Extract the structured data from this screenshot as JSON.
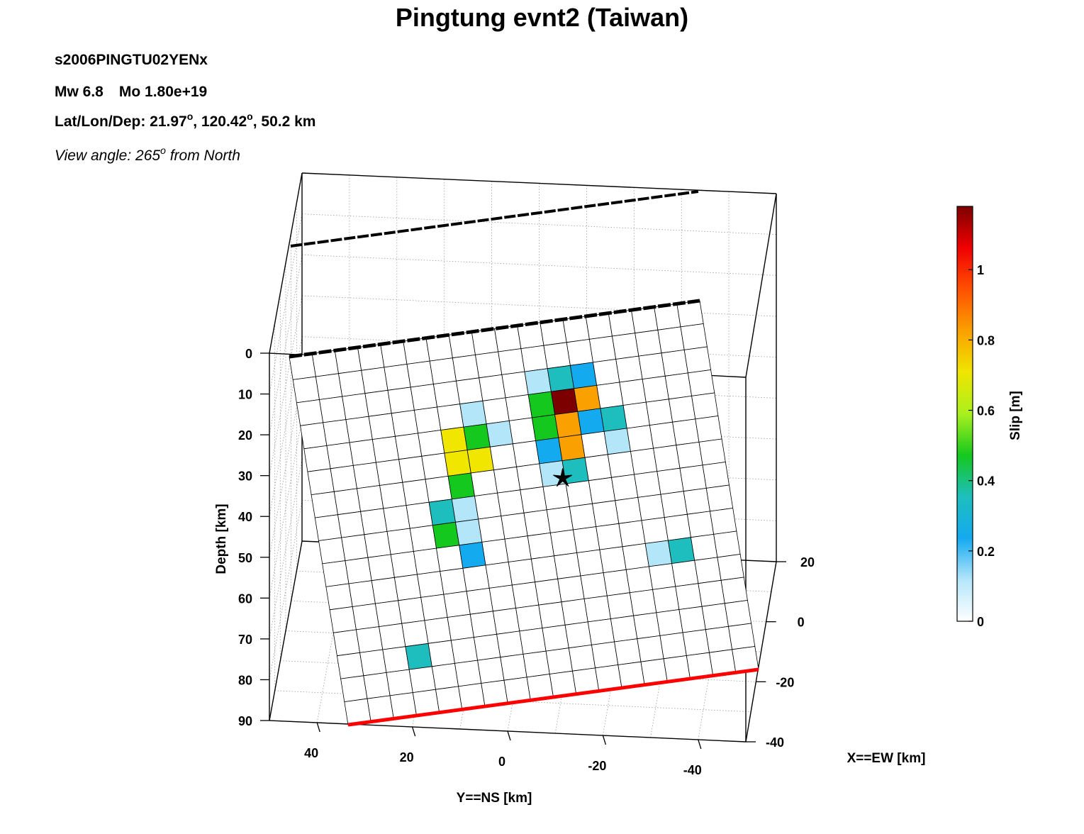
{
  "header": {
    "title": "Pingtung evnt2 (Taiwan)",
    "event_id": "s2006PINGTU02YENx",
    "mw_label": "Mw 6.8",
    "mo_label": "Mo 1.80e+19",
    "loc_prefix": "Lat/Lon/Dep: 21.97",
    "loc_lat_suffix": ", 120.42",
    "loc_lon_suffix": ", 50.2 km",
    "degree_symbol": "o",
    "view_prefix": "View angle: 265",
    "view_suffix": " from North"
  },
  "chart_data": {
    "type": "heatmap",
    "subtype": "3d-fault-slip-model",
    "view_angle_deg": 265,
    "xlabel": "X==EW [km]",
    "ylabel": "Y==NS [km]",
    "zlabel": "Depth [km]",
    "x_ticks": [
      20,
      0,
      -20,
      -40
    ],
    "y_ticks": [
      40,
      20,
      0,
      -20,
      -40
    ],
    "depth_ticks": [
      0,
      10,
      20,
      30,
      40,
      50,
      60,
      70,
      80,
      90
    ],
    "xlim": [
      -40,
      20
    ],
    "ylim": [
      -50,
      50
    ],
    "depth_lim": [
      0,
      90
    ],
    "grid": true,
    "colorbar": {
      "label": "Slip [m]",
      "min": 0,
      "max": 1.18,
      "ticks": [
        0,
        0.2,
        0.4,
        0.6,
        0.8,
        1
      ],
      "tick_labels": [
        "0",
        "0.2",
        "0.4",
        "0.6",
        "0.8",
        "1"
      ],
      "colormap": [
        "#ffffff",
        "#b4e6fa",
        "#14aaf0",
        "#1ebebe",
        "#14c81e",
        "#aaf01e",
        "#f0e600",
        "#faa000",
        "#ff5000",
        "#f00000",
        "#7d0000"
      ]
    },
    "fault_grid": {
      "columns": 18,
      "rows": 16
    },
    "hypocenter": {
      "column": 10.9,
      "row": 6.75
    },
    "cells": [
      {
        "col": 7,
        "row": 3,
        "slip": 0.17
      },
      {
        "col": 10,
        "row": 2,
        "slip": 0.17
      },
      {
        "col": 11,
        "row": 2,
        "slip": 0.4
      },
      {
        "col": 12,
        "row": 2,
        "slip": 0.28
      },
      {
        "col": 6,
        "row": 4,
        "slip": 0.7
      },
      {
        "col": 7,
        "row": 4,
        "slip": 0.42
      },
      {
        "col": 8,
        "row": 4,
        "slip": 0.17
      },
      {
        "col": 10,
        "row": 3,
        "slip": 0.52
      },
      {
        "col": 11,
        "row": 3,
        "slip": 1.18
      },
      {
        "col": 12,
        "row": 3,
        "slip": 0.8
      },
      {
        "col": 6,
        "row": 5,
        "slip": 0.7
      },
      {
        "col": 7,
        "row": 5,
        "slip": 0.66
      },
      {
        "col": 10,
        "row": 4,
        "slip": 0.42
      },
      {
        "col": 11,
        "row": 4,
        "slip": 0.8
      },
      {
        "col": 12,
        "row": 4,
        "slip": 0.24
      },
      {
        "col": 13,
        "row": 4,
        "slip": 0.38
      },
      {
        "col": 6,
        "row": 6,
        "slip": 0.45
      },
      {
        "col": 10,
        "row": 5,
        "slip": 0.24
      },
      {
        "col": 11,
        "row": 5,
        "slip": 0.8
      },
      {
        "col": 13,
        "row": 5,
        "slip": 0.12
      },
      {
        "col": 5,
        "row": 7,
        "slip": 0.36
      },
      {
        "col": 6,
        "row": 7,
        "slip": 0.16
      },
      {
        "col": 10,
        "row": 6,
        "slip": 0.17
      },
      {
        "col": 11,
        "row": 6,
        "slip": 0.34
      },
      {
        "col": 5,
        "row": 8,
        "slip": 0.45
      },
      {
        "col": 6,
        "row": 8,
        "slip": 0.17
      },
      {
        "col": 6,
        "row": 9,
        "slip": 0.24
      },
      {
        "col": 14,
        "row": 10,
        "slip": 0.1
      },
      {
        "col": 15,
        "row": 10,
        "slip": 0.3
      },
      {
        "col": 3,
        "row": 13,
        "slip": 0.38
      },
      {
        "col": 4,
        "row": 14,
        "slip": 0.05
      }
    ]
  }
}
